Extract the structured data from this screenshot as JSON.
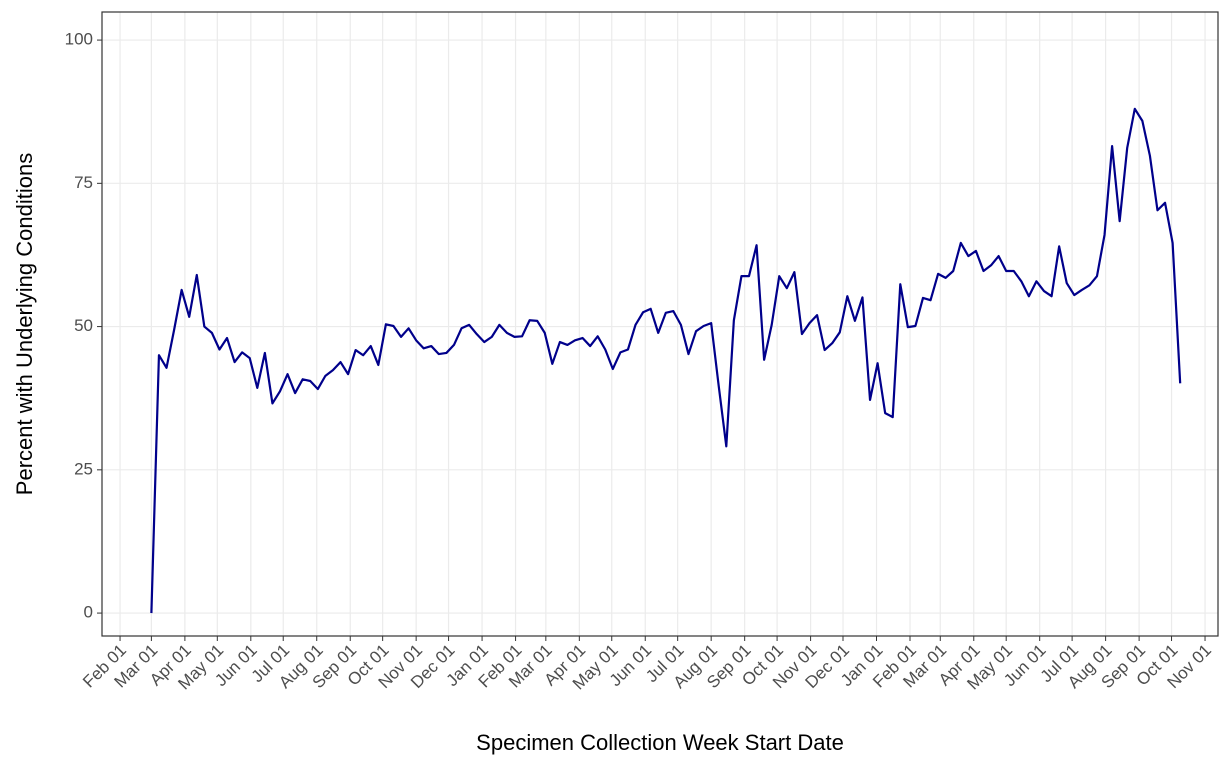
{
  "chart_data": {
    "type": "line",
    "x_label": "Specimen Collection Week Start Date",
    "y_label": "Percent with Underlying Conditions",
    "color": "#00008b",
    "grid": true,
    "x": [
      29,
      36,
      43,
      50,
      57,
      64,
      71,
      78,
      85,
      92,
      99,
      106,
      113,
      120,
      127,
      134,
      141,
      148,
      155,
      162,
      169,
      176,
      183,
      190,
      197,
      204,
      211,
      218,
      225,
      232,
      239,
      246,
      253,
      260,
      267,
      274,
      281,
      288,
      295,
      302,
      309,
      316,
      323,
      330,
      337,
      344,
      351,
      358,
      365,
      372,
      379,
      386,
      393,
      400,
      407,
      414,
      421,
      428,
      435,
      442,
      449,
      456,
      463,
      470,
      477,
      484,
      491,
      498,
      505,
      512,
      519,
      526,
      533,
      540,
      547,
      554,
      561,
      568,
      575,
      582,
      589,
      596,
      603,
      610,
      617,
      624,
      631,
      638,
      645,
      652,
      659,
      666,
      673,
      680,
      687,
      694,
      701,
      708,
      715,
      722,
      729,
      736,
      743,
      750,
      757,
      764,
      771,
      778,
      785,
      792,
      799,
      806,
      813,
      820,
      827,
      834,
      841,
      848,
      855,
      862,
      869,
      876,
      883,
      890,
      897,
      904,
      911,
      918,
      925,
      932,
      939,
      946,
      953,
      960,
      967,
      974,
      981
    ],
    "values": [
      0,
      45,
      42.8,
      49.4,
      56.4,
      51.7,
      59,
      50,
      48.9,
      46,
      48,
      43.8,
      45.5,
      44.5,
      39.3,
      45.4,
      36.6,
      38.7,
      41.7,
      38.4,
      40.8,
      40.5,
      39.1,
      41.4,
      42.4,
      43.8,
      41.7,
      45.9,
      45,
      46.6,
      43.3,
      50.4,
      50.1,
      48.2,
      49.7,
      47.6,
      46.2,
      46.6,
      45.2,
      45.4,
      46.8,
      49.7,
      50.3,
      48.7,
      47.3,
      48.2,
      50.3,
      48.9,
      48.2,
      48.3,
      51.1,
      51,
      48.9,
      43.5,
      47.3,
      46.8,
      47.6,
      48,
      46.6,
      48.3,
      46,
      42.6,
      45.5,
      46,
      50.3,
      52.5,
      53.1,
      48.9,
      52.4,
      52.7,
      50.3,
      45.2,
      49.2,
      50.1,
      50.6,
      39.6,
      29.1,
      51.1,
      58.8,
      58.8,
      64.2,
      44.2,
      50.3,
      58.8,
      56.7,
      59.5,
      48.7,
      50.6,
      52,
      45.9,
      47.1,
      49,
      55.3,
      51,
      55.1,
      37.2,
      43.6,
      34.9,
      34.2,
      57.4,
      49.9,
      50.1,
      55,
      54.6,
      59.2,
      58.5,
      59.7,
      64.6,
      62.3,
      63.2,
      59.7,
      60.7,
      62.3,
      59.7,
      59.7,
      57.9,
      55.3,
      57.9,
      56.2,
      55.3,
      64,
      57.6,
      55.5,
      56.4,
      57.2,
      58.8,
      66,
      81.5,
      68.4,
      81.2,
      88,
      85.9,
      79.8,
      70.3,
      71.6,
      64.6,
      40.1
    ],
    "xlim": [
      -16.7,
      1016
    ],
    "xticks": [
      {
        "value": 0,
        "label": "Feb 01"
      },
      {
        "value": 29,
        "label": "Mar 01"
      },
      {
        "value": 60,
        "label": "Apr 01"
      },
      {
        "value": 90,
        "label": "May 01"
      },
      {
        "value": 121,
        "label": "Jun 01"
      },
      {
        "value": 151,
        "label": "Jul 01"
      },
      {
        "value": 182,
        "label": "Aug 01"
      },
      {
        "value": 213,
        "label": "Sep 01"
      },
      {
        "value": 243,
        "label": "Oct 01"
      },
      {
        "value": 274,
        "label": "Nov 01"
      },
      {
        "value": 304,
        "label": "Dec 01"
      },
      {
        "value": 335,
        "label": "Jan 01"
      },
      {
        "value": 366,
        "label": "Feb 01"
      },
      {
        "value": 394,
        "label": "Mar 01"
      },
      {
        "value": 425,
        "label": "Apr 01"
      },
      {
        "value": 455,
        "label": "May 01"
      },
      {
        "value": 486,
        "label": "Jun 01"
      },
      {
        "value": 516,
        "label": "Jul 01"
      },
      {
        "value": 547,
        "label": "Aug 01"
      },
      {
        "value": 578,
        "label": "Sep 01"
      },
      {
        "value": 608,
        "label": "Oct 01"
      },
      {
        "value": 639,
        "label": "Nov 01"
      },
      {
        "value": 669,
        "label": "Dec 01"
      },
      {
        "value": 700,
        "label": "Jan 01"
      },
      {
        "value": 731,
        "label": "Feb 01"
      },
      {
        "value": 759,
        "label": "Mar 01"
      },
      {
        "value": 790,
        "label": "Apr 01"
      },
      {
        "value": 820,
        "label": "May 01"
      },
      {
        "value": 851,
        "label": "Jun 01"
      },
      {
        "value": 881,
        "label": "Jul 01"
      },
      {
        "value": 912,
        "label": "Aug 01"
      },
      {
        "value": 943,
        "label": "Sep 01"
      },
      {
        "value": 973,
        "label": "Oct 01"
      },
      {
        "value": 1004,
        "label": "Nov 01"
      }
    ],
    "ylim": [
      -4,
      104.9
    ],
    "yticks": [
      0,
      25,
      50,
      75,
      100
    ]
  }
}
